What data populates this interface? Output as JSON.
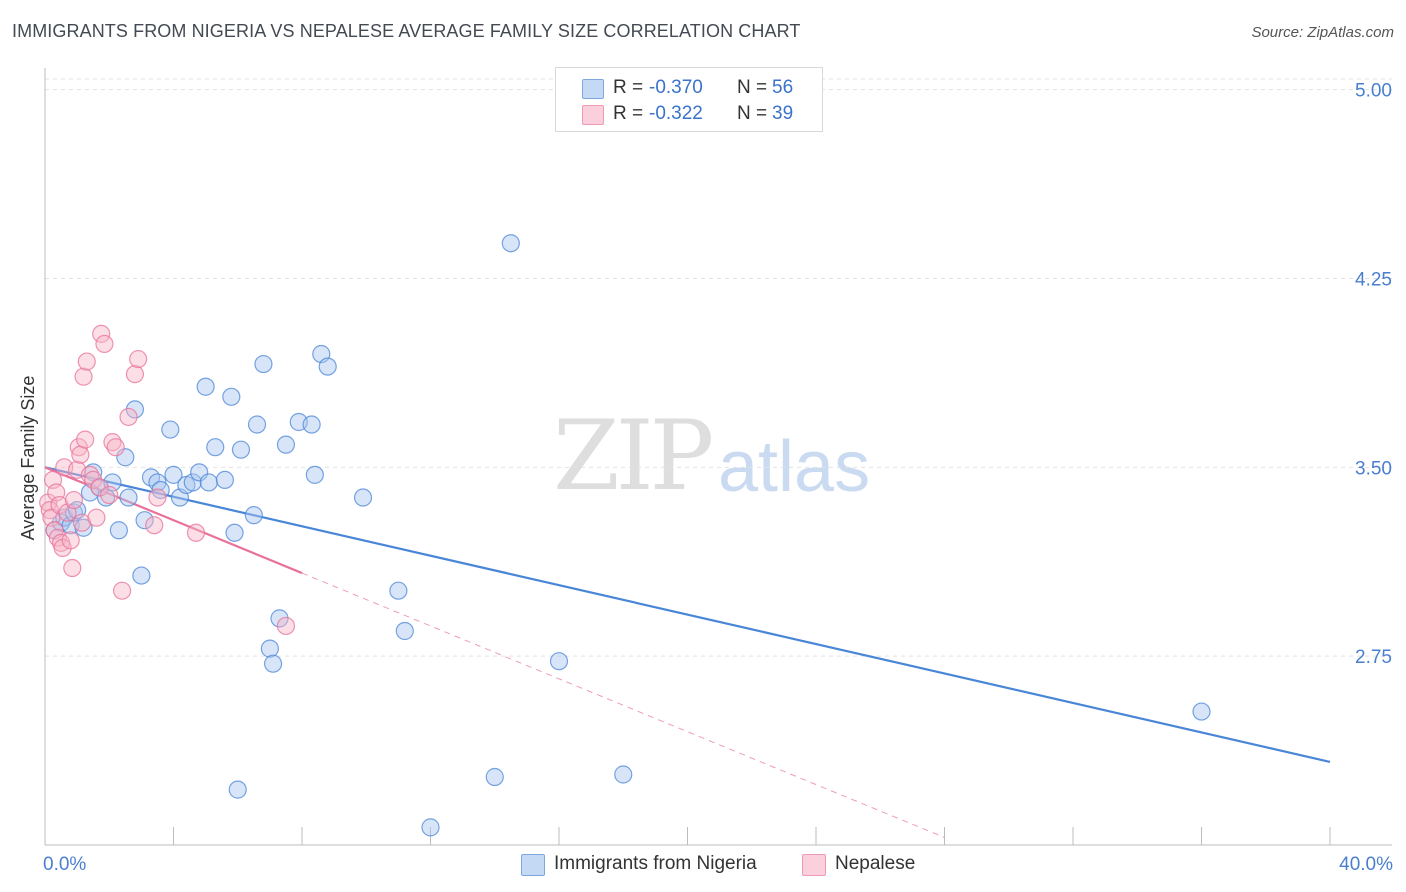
{
  "title": "IMMIGRANTS FROM NIGERIA VS NEPALESE AVERAGE FAMILY SIZE CORRELATION CHART",
  "source": "Source: ZipAtlas.com",
  "watermark": {
    "zip": "ZIP",
    "atlas": "atlas"
  },
  "legend": {
    "r_label": "R =",
    "n_label": "N =",
    "rows": [
      {
        "r": "-0.370",
        "n": "56",
        "color": "#a9c6ef"
      },
      {
        "r": "-0.322",
        "n": "39",
        "color": "#f7b5c8"
      }
    ]
  },
  "bottom_legend": [
    {
      "label": "Immigrants from Nigeria",
      "color": "#a9c6ef"
    },
    {
      "label": "Nepalese",
      "color": "#f7b5c8"
    }
  ],
  "chart_data": {
    "type": "scatter",
    "title": "IMMIGRANTS FROM NIGERIA VS NEPALESE AVERAGE FAMILY SIZE CORRELATION CHART",
    "xlabel": "",
    "ylabel": "Average Family Size",
    "xlim": [
      0,
      40
    ],
    "ylim": [
      2.0,
      5.07
    ],
    "x_tick_labels": [
      "0.0%",
      "40.0%"
    ],
    "y_ticks": [
      2.75,
      3.5,
      4.25,
      5.0
    ],
    "y_tick_labels": [
      "2.75",
      "3.50",
      "4.25",
      "5.00"
    ],
    "series": [
      {
        "name": "Immigrants from Nigeria",
        "color": "#4a86d8",
        "fill": "#a9c6ef",
        "trend": {
          "x0": 0.0,
          "y0": 3.5,
          "x1": 40.0,
          "y1": 2.33,
          "style": "solid"
        },
        "points": [
          [
            0.3,
            3.25
          ],
          [
            0.5,
            3.28
          ],
          [
            0.6,
            3.3
          ],
          [
            0.8,
            3.27
          ],
          [
            0.9,
            3.32
          ],
          [
            1.0,
            3.33
          ],
          [
            1.2,
            3.26
          ],
          [
            1.4,
            3.4
          ],
          [
            1.5,
            3.48
          ],
          [
            1.7,
            3.42
          ],
          [
            1.9,
            3.38
          ],
          [
            2.1,
            3.44
          ],
          [
            2.3,
            3.25
          ],
          [
            2.5,
            3.54
          ],
          [
            2.6,
            3.38
          ],
          [
            2.8,
            3.73
          ],
          [
            3.0,
            3.07
          ],
          [
            3.1,
            3.29
          ],
          [
            3.3,
            3.46
          ],
          [
            3.5,
            3.44
          ],
          [
            3.6,
            3.41
          ],
          [
            3.9,
            3.65
          ],
          [
            4.0,
            3.47
          ],
          [
            4.2,
            3.38
          ],
          [
            4.4,
            3.43
          ],
          [
            4.6,
            3.44
          ],
          [
            4.8,
            3.48
          ],
          [
            5.0,
            3.82
          ],
          [
            5.1,
            3.44
          ],
          [
            5.3,
            3.58
          ],
          [
            5.6,
            3.45
          ],
          [
            5.8,
            3.78
          ],
          [
            5.9,
            3.24
          ],
          [
            6.1,
            3.57
          ],
          [
            6.5,
            3.31
          ],
          [
            6.6,
            3.67
          ],
          [
            6.8,
            3.91
          ],
          [
            7.3,
            2.9
          ],
          [
            7.5,
            3.59
          ],
          [
            7.9,
            3.68
          ],
          [
            8.3,
            3.67
          ],
          [
            8.4,
            3.47
          ],
          [
            8.6,
            3.95
          ],
          [
            8.8,
            3.9
          ],
          [
            9.9,
            3.38
          ],
          [
            11.0,
            3.01
          ],
          [
            11.2,
            2.85
          ],
          [
            14.5,
            4.39
          ],
          [
            16.0,
            2.73
          ],
          [
            18.0,
            2.28
          ],
          [
            14.0,
            2.27
          ],
          [
            12.0,
            2.07
          ],
          [
            6.0,
            2.22
          ],
          [
            7.0,
            2.78
          ],
          [
            7.1,
            2.72
          ],
          [
            36.0,
            2.53
          ]
        ]
      },
      {
        "name": "Nepalese",
        "color": "#e8729b",
        "fill": "#f7b5c8",
        "trend": {
          "x0": 0.0,
          "y0": 3.5,
          "x1": 8.0,
          "y1": 3.08,
          "style": "solid",
          "ext_x1": 28.0,
          "ext_y1": 2.03,
          "ext_style": "dashed"
        },
        "points": [
          [
            0.1,
            3.36
          ],
          [
            0.15,
            3.33
          ],
          [
            0.2,
            3.3
          ],
          [
            0.25,
            3.45
          ],
          [
            0.3,
            3.25
          ],
          [
            0.35,
            3.4
          ],
          [
            0.4,
            3.22
          ],
          [
            0.45,
            3.35
          ],
          [
            0.5,
            3.2
          ],
          [
            0.55,
            3.18
          ],
          [
            0.6,
            3.5
          ],
          [
            0.7,
            3.32
          ],
          [
            0.8,
            3.21
          ],
          [
            0.85,
            3.1
          ],
          [
            0.9,
            3.37
          ],
          [
            1.0,
            3.49
          ],
          [
            1.05,
            3.58
          ],
          [
            1.1,
            3.55
          ],
          [
            1.15,
            3.28
          ],
          [
            1.2,
            3.86
          ],
          [
            1.25,
            3.61
          ],
          [
            1.3,
            3.92
          ],
          [
            1.4,
            3.47
          ],
          [
            1.5,
            3.45
          ],
          [
            1.6,
            3.3
          ],
          [
            1.7,
            3.42
          ],
          [
            1.75,
            4.03
          ],
          [
            1.85,
            3.99
          ],
          [
            2.0,
            3.39
          ],
          [
            2.1,
            3.6
          ],
          [
            2.2,
            3.58
          ],
          [
            2.4,
            3.01
          ],
          [
            2.6,
            3.7
          ],
          [
            2.8,
            3.87
          ],
          [
            2.9,
            3.93
          ],
          [
            3.4,
            3.27
          ],
          [
            3.5,
            3.38
          ],
          [
            4.7,
            3.24
          ],
          [
            7.5,
            2.87
          ]
        ]
      }
    ]
  }
}
